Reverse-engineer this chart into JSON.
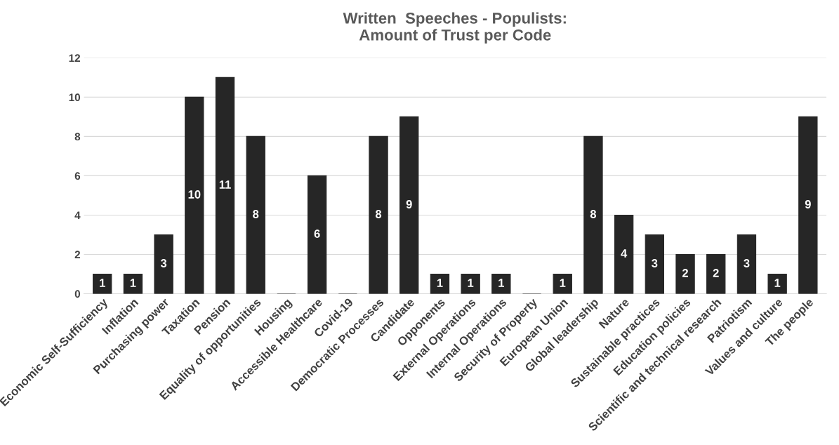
{
  "chart_data": {
    "type": "bar",
    "title": "Written  Speeches - Populists:\nAmount of Trust per Code",
    "categories": [
      "Economic Self-Sufficiency",
      "Inflation",
      "Purchasing power",
      "Taxation",
      "Pension",
      "Equality of opportunities",
      "Housing",
      "Accessible Healthcare",
      "Covid-19",
      "Democratic Processes",
      "Candidate",
      "Opponents",
      "External Operations",
      "Internal Operations",
      "Security of Property",
      "European Union",
      "Global leadership",
      "Nature",
      "Sustainable practices",
      "Education policies",
      "Scientific and technical research",
      "Patriotism",
      "Values and culture",
      "The people"
    ],
    "values": [
      1,
      1,
      3,
      10,
      11,
      8,
      0,
      6,
      0,
      8,
      9,
      1,
      1,
      1,
      0,
      1,
      8,
      4,
      3,
      2,
      2,
      3,
      1,
      9
    ],
    "value_labels": [
      "1",
      "1",
      "3",
      "10",
      "11",
      "8",
      null,
      "6",
      null,
      "8",
      "9",
      "1",
      "1",
      "1",
      null,
      "1",
      "8",
      "4",
      "3",
      "2",
      "2",
      "3",
      "1",
      "9"
    ],
    "color": "#262626",
    "ylim": [
      0,
      12
    ],
    "yticks": [
      0,
      2,
      4,
      6,
      8,
      10,
      12
    ],
    "grid": "y",
    "legend": false
  }
}
